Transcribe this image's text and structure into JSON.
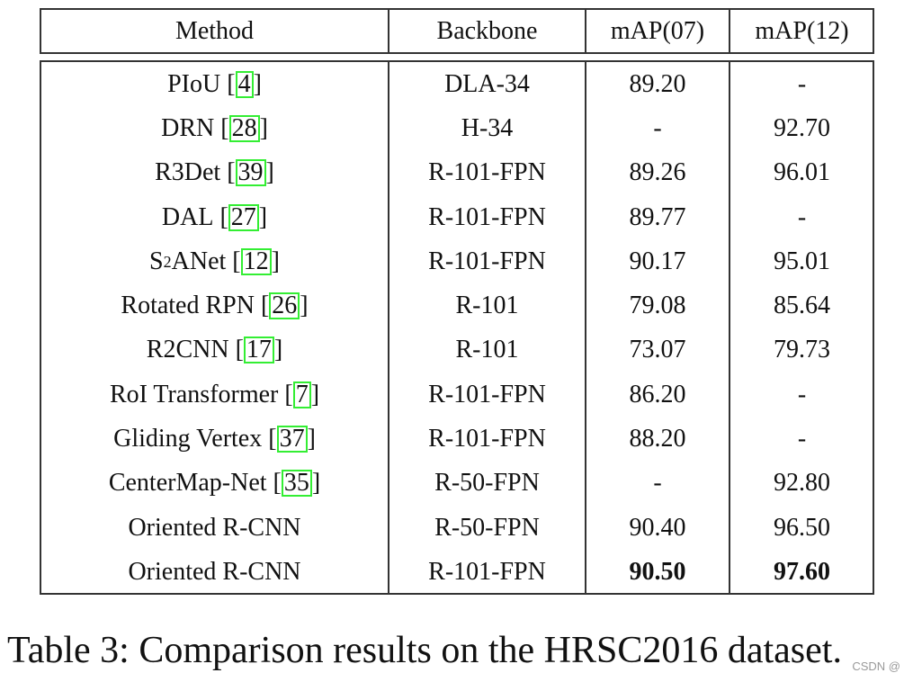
{
  "table": {
    "headers": {
      "method": "Method",
      "backbone": "Backbone",
      "map07": "mAP(07)",
      "map12": "mAP(12)"
    },
    "rows": [
      {
        "method": "PIoU",
        "ref": "4",
        "backbone": "DLA-34",
        "map07": "89.20",
        "map12": "-"
      },
      {
        "method": "DRN",
        "ref": "28",
        "backbone": "H-34",
        "map07": "-",
        "map12": "92.70"
      },
      {
        "method": "R3Det",
        "ref": "39",
        "backbone": "R-101-FPN",
        "map07": "89.26",
        "map12": "96.01"
      },
      {
        "method": "DAL",
        "ref": "27",
        "backbone": "R-101-FPN",
        "map07": "89.77",
        "map12": "-"
      },
      {
        "method_base": "S",
        "method_sup": "2",
        "method_rest": "ANet",
        "ref": "12",
        "backbone": "R-101-FPN",
        "map07": "90.17",
        "map12": "95.01"
      },
      {
        "method": "Rotated RPN",
        "ref": "26",
        "backbone": "R-101",
        "map07": "79.08",
        "map12": "85.64"
      },
      {
        "method": "R2CNN",
        "ref": "17",
        "backbone": "R-101",
        "map07": "73.07",
        "map12": "79.73"
      },
      {
        "method": "RoI Transformer",
        "ref": "7",
        "backbone": "R-101-FPN",
        "map07": "86.20",
        "map12": "-"
      },
      {
        "method": "Gliding Vertex",
        "ref": "37",
        "backbone": "R-101-FPN",
        "map07": "88.20",
        "map12": "-"
      },
      {
        "method": "CenterMap-Net",
        "ref": "35",
        "backbone": "R-50-FPN",
        "map07": "-",
        "map12": "92.80"
      },
      {
        "method": "Oriented R-CNN",
        "backbone": "R-50-FPN",
        "map07": "90.40",
        "map12": "96.50"
      },
      {
        "method": "Oriented R-CNN",
        "backbone": "R-101-FPN",
        "map07": "90.50",
        "map12": "97.60",
        "bold_scores": true
      }
    ]
  },
  "caption": "Table 3: Comparison results on the HRSC2016 dataset.",
  "watermark": "CSDN @",
  "colors": {
    "rule": "#333333",
    "citation_box": "#33ee33",
    "text": "#111111",
    "watermark": "#9a9a9a"
  }
}
